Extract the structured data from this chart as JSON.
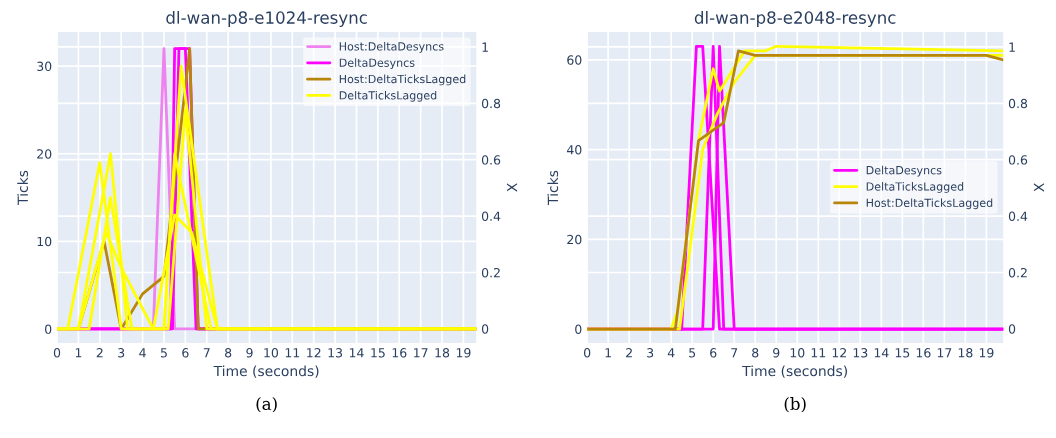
{
  "chart_data": [
    {
      "type": "line",
      "title": "dl-wan-p8-e1024-resync",
      "xlabel": "Time (seconds)",
      "ylabel": "Ticks",
      "y2label": "X",
      "xlim": [
        0,
        19.6
      ],
      "xticks": [
        0,
        1,
        2,
        3,
        4,
        5,
        6,
        7,
        8,
        9,
        10,
        11,
        12,
        13,
        14,
        15,
        16,
        17,
        18,
        19
      ],
      "ylim": [
        -1.6,
        33.9
      ],
      "yticks": [
        0,
        10,
        20,
        30
      ],
      "y2lim": [
        -0.05,
        1.053
      ],
      "y2ticks": [
        0,
        0.2,
        0.4,
        0.6,
        0.8,
        1
      ],
      "grid": true,
      "legend": "top right",
      "annotations": [
        "(a)"
      ],
      "series": [
        {
          "name": "Host:DeltaDesyncs",
          "color": "#ee82ee",
          "x": [
            0,
            4.5,
            5.0,
            5.5,
            19.6
          ],
          "values": [
            0,
            0,
            32,
            0,
            0
          ]
        },
        {
          "name": "DeltaDesyncs",
          "color": "#ff00ff",
          "x": [
            0,
            5.3,
            5.5,
            6.0,
            6.5,
            19.6
          ],
          "values": [
            0,
            0,
            32,
            32,
            0,
            0
          ]
        },
        {
          "color": "#ff00ff",
          "x": [
            0,
            5.4,
            5.7,
            6.2,
            6.6,
            19.6
          ],
          "values": [
            0,
            0,
            32,
            32,
            0,
            0
          ]
        },
        {
          "name": "Host:DeltaTicksLagged",
          "color": "#b8860b",
          "x": [
            0,
            1.0,
            2.2,
            3.0,
            4.0,
            5.0,
            6.2,
            6.6,
            19.6
          ],
          "values": [
            0,
            0,
            10,
            0,
            4,
            6,
            32,
            0,
            0
          ]
        },
        {
          "name": "DeltaTicksLagged",
          "color": "#ffff00",
          "x": [
            0,
            0.5,
            2.0,
            3.0,
            5.0,
            5.8,
            7.5,
            19.6
          ],
          "values": [
            0,
            0,
            19,
            0,
            0,
            30,
            0,
            0
          ]
        },
        {
          "color": "#ffff00",
          "x": [
            0,
            1.0,
            2.5,
            3.3,
            5.0,
            5.5,
            7.2,
            19.6
          ],
          "values": [
            0,
            0,
            20,
            0,
            0,
            20,
            0,
            0
          ]
        },
        {
          "color": "#ffff00",
          "x": [
            0,
            1.5,
            2.5,
            3.5,
            5.2,
            6.0,
            7.0,
            19.6
          ],
          "values": [
            0,
            0,
            15,
            0,
            0,
            25,
            0,
            0
          ]
        },
        {
          "color": "#ffff00",
          "x": [
            0,
            1.0,
            2.3,
            3.0,
            4.5,
            5.5,
            6.3,
            7.5,
            19.6
          ],
          "values": [
            0,
            0,
            11,
            7,
            0,
            13,
            11,
            0,
            0
          ]
        }
      ]
    },
    {
      "type": "line",
      "title": "dl-wan-p8-e2048-resync",
      "xlabel": "Time (seconds)",
      "ylabel": "Ticks",
      "y2label": "X",
      "xlim": [
        0,
        19.8
      ],
      "xticks": [
        0,
        1,
        2,
        3,
        4,
        5,
        6,
        7,
        8,
        9,
        10,
        11,
        12,
        13,
        14,
        15,
        16,
        17,
        18,
        19
      ],
      "ylim": [
        -3.1,
        66.2
      ],
      "yticks": [
        0,
        20,
        40,
        60
      ],
      "y2lim": [
        -0.05,
        1.053
      ],
      "y2ticks": [
        0,
        0.2,
        0.4,
        0.6,
        0.8,
        1
      ],
      "grid": true,
      "legend": "right",
      "annotations": [
        "(b)"
      ],
      "series": [
        {
          "name": "DeltaDesyncs",
          "color": "#ff00ff",
          "x": [
            0,
            4.5,
            5.2,
            5.5,
            6.3,
            19.8
          ],
          "values": [
            0,
            0,
            63,
            63,
            0,
            0
          ]
        },
        {
          "color": "#ff00ff",
          "x": [
            0,
            5.5,
            6.0,
            6.5,
            19.8
          ],
          "values": [
            0,
            0,
            63,
            0,
            0
          ]
        },
        {
          "color": "#ff00ff",
          "x": [
            0,
            6.0,
            6.3,
            7.0,
            19.8
          ],
          "values": [
            0,
            0,
            63,
            0,
            0
          ]
        },
        {
          "name": "DeltaTicksLagged",
          "color": "#ffff00",
          "x": [
            0,
            4.0,
            4.3,
            5.3,
            6.0,
            6.3,
            7.5,
            8.5,
            9.0,
            19.8
          ],
          "values": [
            0,
            0,
            4,
            42,
            58,
            53,
            62,
            62,
            63,
            62
          ]
        },
        {
          "color": "#ffff00",
          "x": [
            0,
            4.4,
            5.5,
            6.2,
            7.0,
            8.0,
            19.8
          ],
          "values": [
            0,
            0,
            40,
            48,
            55,
            61,
            61
          ]
        },
        {
          "name": "Host:DeltaTicksLagged",
          "color": "#b8860b",
          "x": [
            0,
            4.2,
            5.3,
            6.5,
            7.2,
            8.0,
            19.0,
            19.8
          ],
          "values": [
            0,
            0,
            42,
            46,
            62,
            61,
            61,
            60
          ]
        }
      ]
    }
  ]
}
